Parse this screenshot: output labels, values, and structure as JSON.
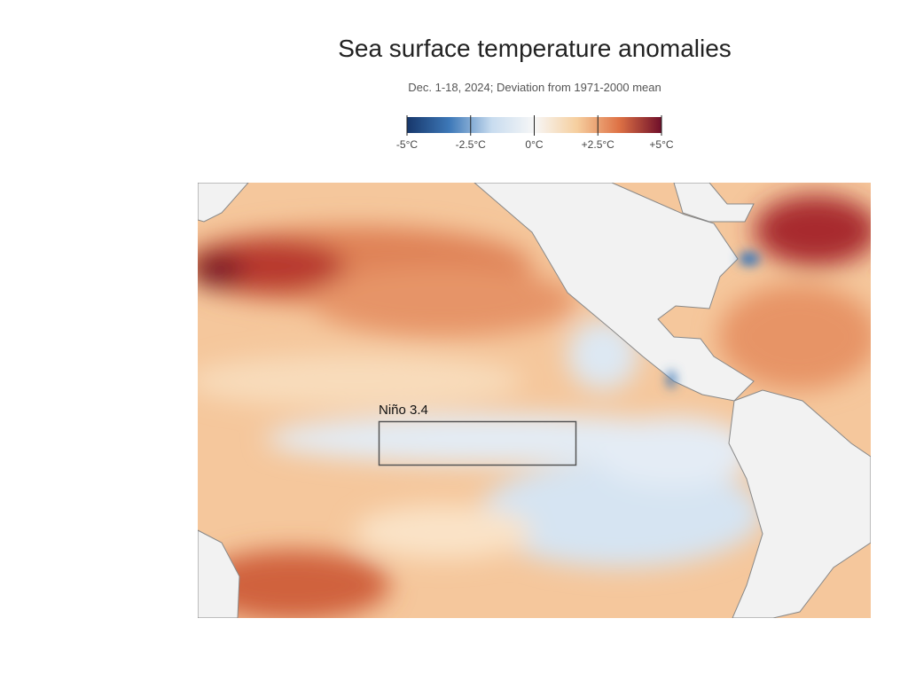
{
  "header": {
    "title": "Sea surface temperature anomalies",
    "subtitle": "Dec. 1-18, 2024; Deviation from 1971-2000 mean"
  },
  "legend": {
    "range": [
      -5,
      5
    ],
    "colors": [
      "#17376b",
      "#3d78b8",
      "#c8dcef",
      "#f7f7f7",
      "#f6cf9f",
      "#de7245",
      "#6f0f2a"
    ],
    "ticks": [
      {
        "value": -5,
        "label": "-5°C"
      },
      {
        "value": -2.5,
        "label": "-2.5°C"
      },
      {
        "value": 0,
        "label": "0°C"
      },
      {
        "value": 2.5,
        "label": "+2.5°C"
      },
      {
        "value": 5,
        "label": "+5°C"
      }
    ]
  },
  "map": {
    "annotations": [
      {
        "label": "Niño 3.4"
      }
    ]
  }
}
